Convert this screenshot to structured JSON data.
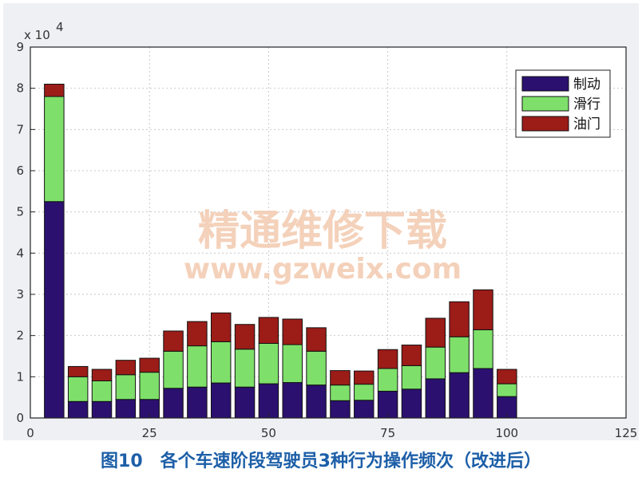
{
  "caption": "图10　各个车速阶段驾驶员3种行为操作频次（改进后）",
  "watermark": {
    "cn": "精通维修下载",
    "url": "www.gzweix.com"
  },
  "chart_data": {
    "type": "bar",
    "stacked": true,
    "x": [
      5,
      10,
      15,
      20,
      25,
      30,
      35,
      40,
      45,
      50,
      55,
      60,
      65,
      70,
      75,
      80,
      85,
      90,
      95,
      100
    ],
    "series": [
      {
        "name": "制动",
        "color": "#2b1070",
        "values": [
          52500,
          4000,
          4000,
          4500,
          4500,
          7200,
          7500,
          8500,
          7500,
          8300,
          8600,
          8000,
          4200,
          4300,
          6500,
          7000,
          9500,
          11000,
          12000,
          5200
        ]
      },
      {
        "name": "滑行",
        "color": "#7ee06a",
        "values": [
          25500,
          6000,
          5000,
          6000,
          6600,
          9000,
          10000,
          10000,
          9200,
          9800,
          9200,
          8200,
          3800,
          3900,
          5500,
          5700,
          7700,
          8700,
          9400,
          3100
        ]
      },
      {
        "name": "油门",
        "color": "#9c1c18",
        "values": [
          3000,
          2500,
          2800,
          3500,
          3400,
          4900,
          5900,
          7000,
          6000,
          6300,
          6200,
          5700,
          3500,
          3200,
          4600,
          5000,
          7000,
          8500,
          9700,
          3500
        ]
      }
    ],
    "xlim": [
      0,
      125
    ],
    "ylim": [
      0,
      90000
    ],
    "x_ticks": [
      0,
      25,
      50,
      75,
      100,
      125
    ],
    "y_ticks": [
      0,
      1,
      2,
      3,
      4,
      5,
      6,
      7,
      8,
      9
    ],
    "y_multiplier_label": "x 10",
    "y_multiplier_exp": "4",
    "grid": true,
    "legend_position": "top-right"
  }
}
